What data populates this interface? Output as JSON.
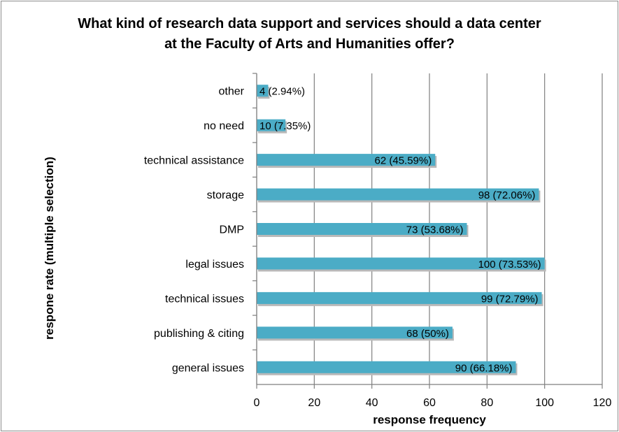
{
  "chart_data": {
    "type": "bar",
    "orientation": "horizontal",
    "title_lines": [
      "What kind of research data support and services should a data center",
      "at the Faculty of Arts and Humanities offer?"
    ],
    "xlabel": "response frequency",
    "ylabel": "respone rate (multiple selection)",
    "categories": [
      "other",
      "no need",
      "technical assistance",
      "storage",
      "DMP",
      "legal issues",
      "technical issues",
      "publishing & citing",
      "general issues"
    ],
    "values": [
      4,
      10,
      62,
      98,
      73,
      100,
      99,
      68,
      90
    ],
    "data_labels": [
      "4 (2.94%)",
      "10 (7.35%)",
      "62 (45.59%)",
      "98 (72.06%)",
      "73 (53.68%)",
      "100 (73.53%)",
      "99 (72.79%)",
      "68 (50%)",
      "90 (66.18%)"
    ],
    "xlim": [
      0,
      120
    ],
    "xticks": [
      0,
      20,
      40,
      60,
      80,
      100,
      120
    ],
    "grid": true,
    "legend": "none",
    "bar_color": "#4bacc6"
  }
}
